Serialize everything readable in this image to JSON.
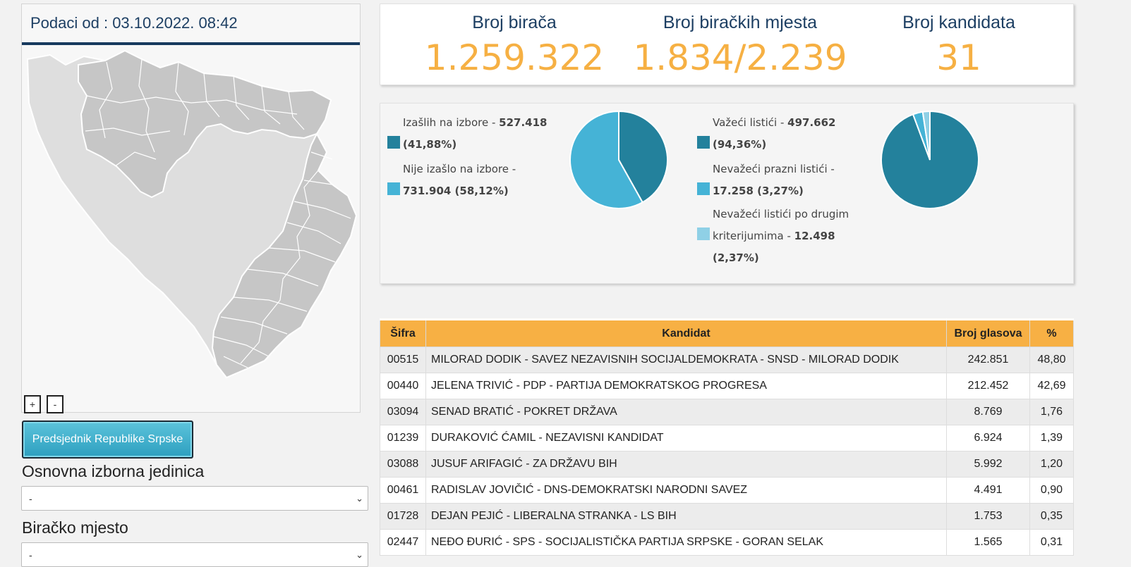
{
  "map": {
    "data_timestamp": "Podaci od : 03.10.2022. 08:42",
    "zoom_in": "+",
    "zoom_out": "-"
  },
  "office_button": "Predsjednik Republike Srpske",
  "filters": {
    "unit_label": "Osnovna izborna jedinica",
    "unit_value": "-",
    "station_label": "Biračko mjesto",
    "station_value": "-"
  },
  "stats": {
    "voters_label": "Broj birača",
    "voters_value": "1.259.322",
    "stations_label": "Broj biračkih mjesta",
    "stations_value": "1.834/2.239",
    "candidates_label": "Broj kandidata",
    "candidates_value": "31"
  },
  "turnout": {
    "voted_label": "Izašlih na izbore - ",
    "voted_value": "527.418",
    "voted_pct": "(41,88%)",
    "not_voted_label": "Nije izašlo na izbore - ",
    "not_voted_value": "731.904 (58,12%)"
  },
  "ballots": {
    "valid_label": "Važeći listići - ",
    "valid_value": "497.662",
    "valid_pct": "(94,36%)",
    "blank_label": "Nevažeći prazni listići - ",
    "blank_value": "17.258 (3,27%)",
    "other_label_1": "Nevažeći listići po drugim",
    "other_label_2": "kriterijumima - ",
    "other_value": "12.498",
    "other_pct": "(2,37%)"
  },
  "colors": {
    "accent": "#f6b043",
    "dark_teal": "#23819c",
    "light_blue": "#45b3d6",
    "pale_blue": "#8fd0e6",
    "header_blue": "#1d3f63"
  },
  "chart_data": [
    {
      "type": "pie",
      "categories": [
        "Izašlih na izbore",
        "Nije izašlo na izbore"
      ],
      "values": [
        41.88,
        58.12
      ]
    },
    {
      "type": "pie",
      "categories": [
        "Važeći listići",
        "Nevažeći prazni listići",
        "Nevažeći listići po drugim kriterijumima"
      ],
      "values": [
        94.36,
        3.27,
        2.37
      ]
    }
  ],
  "table": {
    "headers": [
      "Šifra",
      "Kandidat",
      "Broj glasova",
      "%"
    ],
    "rows": [
      [
        "00515",
        "MILORAD DODIK - SAVEZ NEZAVISNIH SOCIJALDEMOKRATA - SNSD - MILORAD DODIK",
        "242.851",
        "48,80"
      ],
      [
        "00440",
        "JELENA TRIVIĆ - PDP - PARTIJA DEMOKRATSKOG PROGRESA",
        "212.452",
        "42,69"
      ],
      [
        "03094",
        "SENAD BRATIĆ - POKRET DRŽAVA",
        "8.769",
        "1,76"
      ],
      [
        "01239",
        "DURAKOVIĆ ĆAMIL - NEZAVISNI KANDIDAT",
        "6.924",
        "1,39"
      ],
      [
        "03088",
        "JUSUF ARIFAGIĆ - ZA DRŽAVU BIH",
        "5.992",
        "1,20"
      ],
      [
        "00461",
        "RADISLAV JOVIČIĆ - DNS-DEMOKRATSKI NARODNI SAVEZ",
        "4.491",
        "0,90"
      ],
      [
        "01728",
        "DEJAN PEJIĆ - LIBERALNA STRANKA - LS BIH",
        "1.753",
        "0,35"
      ],
      [
        "02447",
        "NEĐO ĐURIĆ - SPS - SOCIJALISTIČKA PARTIJA SRPSKE - GORAN SELAK",
        "1.565",
        "0,31"
      ]
    ]
  }
}
